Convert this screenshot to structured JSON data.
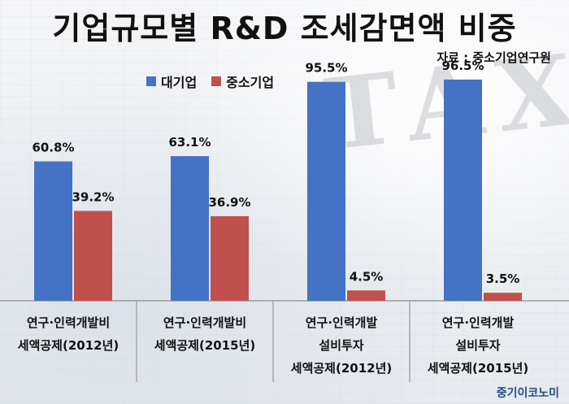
{
  "page_title": "기업규모별 R&D 조세감면액 비중",
  "source_label": "자료 : 중소기업연구원",
  "brand_label": "중기이코노미",
  "chart_data": {
    "type": "bar",
    "title": "기업규모별 R&D 조세감면액 비중",
    "xlabel": "",
    "ylabel": "",
    "ylim": [
      0,
      100
    ],
    "grid": false,
    "legend_position": "top-left",
    "categories": [
      [
        "연구·인력개발비",
        "세액공제(2012년)"
      ],
      [
        "연구·인력개발비",
        "세액공제(2015년)"
      ],
      [
        "연구·인력개발",
        "설비투자",
        "세액공제(2012년)"
      ],
      [
        "연구·인력개발",
        "설비투자",
        "세액공제(2015년)"
      ]
    ],
    "series": [
      {
        "name": "대기업",
        "color": "#4472c4",
        "values": [
          60.8,
          63.1,
          95.5,
          96.5
        ],
        "labels": [
          "60.8%",
          "63.1%",
          "95.5%",
          "96.5%"
        ]
      },
      {
        "name": "중소기업",
        "color": "#c0504d",
        "values": [
          39.2,
          36.9,
          4.5,
          3.5
        ],
        "labels": [
          "39.2%",
          "36.9%",
          "4.5%",
          "3.5%"
        ]
      }
    ]
  }
}
